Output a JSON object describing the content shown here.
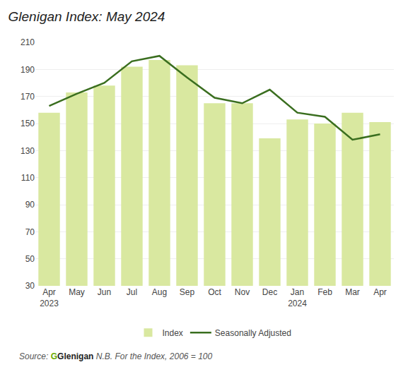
{
  "chart_data": {
    "type": "bar",
    "title": "Glenigan Index: May 2024",
    "categories": [
      "Apr\n2023",
      "May",
      "Jun",
      "Jul",
      "Aug",
      "Sep",
      "Oct",
      "Nov",
      "Dec",
      "Jan\n2024",
      "Feb",
      "Mar",
      "Apr"
    ],
    "series": [
      {
        "name": "Index",
        "type": "bar",
        "color": "#d9e8a0",
        "values": [
          158,
          173,
          178,
          192,
          197,
          193,
          165,
          165,
          139,
          153,
          150,
          158,
          151
        ]
      },
      {
        "name": "Seasonally Adjusted",
        "type": "line",
        "color": "#3a6e1f",
        "values": [
          163,
          172,
          180,
          196,
          200,
          184,
          169,
          165,
          175,
          158,
          155,
          138,
          142
        ]
      }
    ],
    "ylim": [
      30,
      210
    ],
    "yticks": [
      30,
      50,
      70,
      90,
      110,
      130,
      150,
      170,
      190,
      210
    ],
    "grid": true,
    "legend": "bottom",
    "annotations": [
      {
        "text": "Source:",
        "color": "#555555"
      },
      {
        "text": "G",
        "color": "#6aaa00"
      },
      {
        "text": "Glenigan",
        "color": "#222222"
      },
      {
        "text": "N.B. For the Index, 2006 = 100",
        "color": "#555555"
      }
    ]
  }
}
